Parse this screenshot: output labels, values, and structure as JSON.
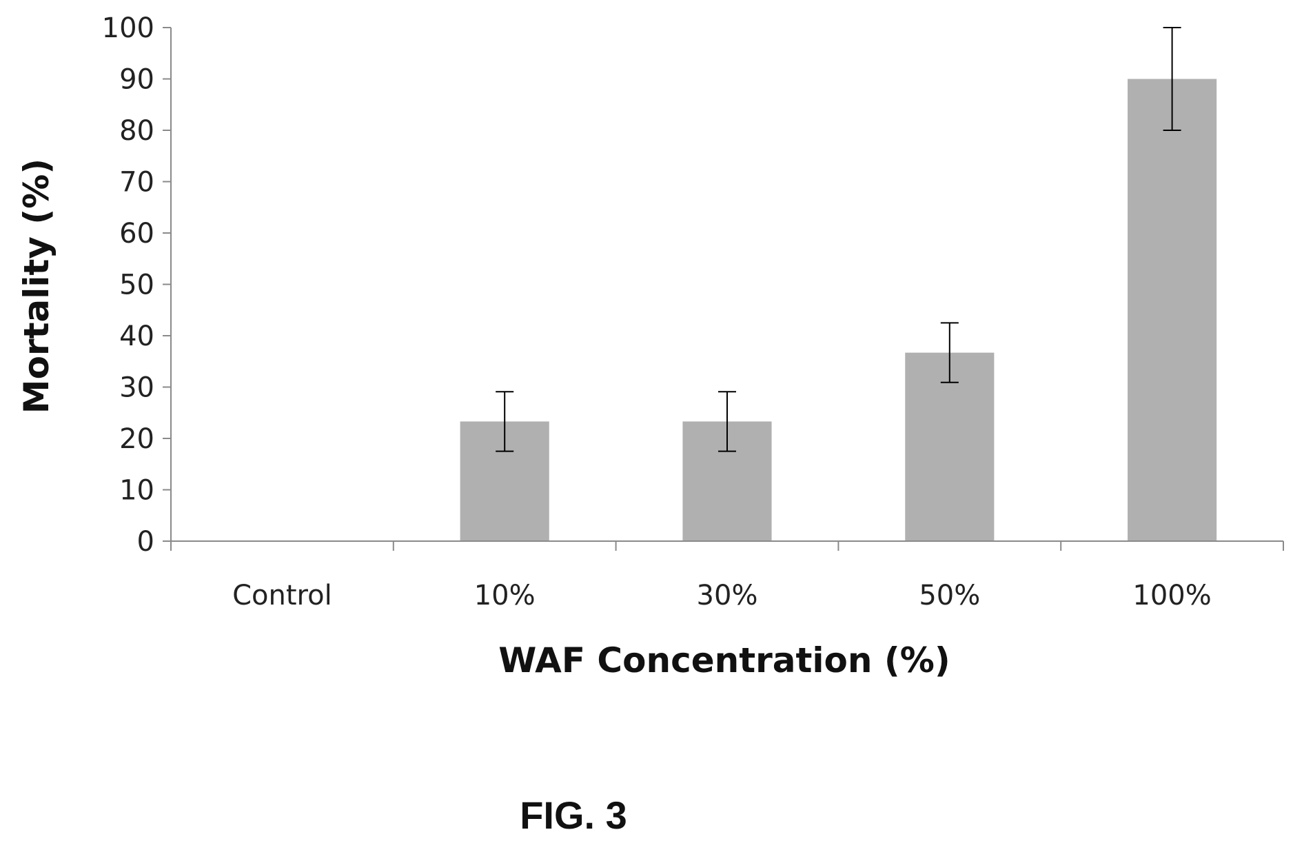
{
  "chart_data": {
    "type": "bar",
    "categories": [
      "Control",
      "10%",
      "30%",
      "50%",
      "100%"
    ],
    "values": [
      0,
      23.3,
      23.3,
      36.7,
      90
    ],
    "error": [
      0,
      5.8,
      5.8,
      5.8,
      10
    ],
    "xlabel": "WAF Concentration (%)",
    "ylabel": "Mortality (%)",
    "ylim": [
      0,
      100
    ],
    "yticks": [
      "0",
      "10",
      "20",
      "30",
      "40",
      "50",
      "60",
      "70",
      "80",
      "90",
      "100"
    ],
    "grid": false,
    "bar_color": "#b0b0b0"
  },
  "figure_label": "FIG. 3"
}
